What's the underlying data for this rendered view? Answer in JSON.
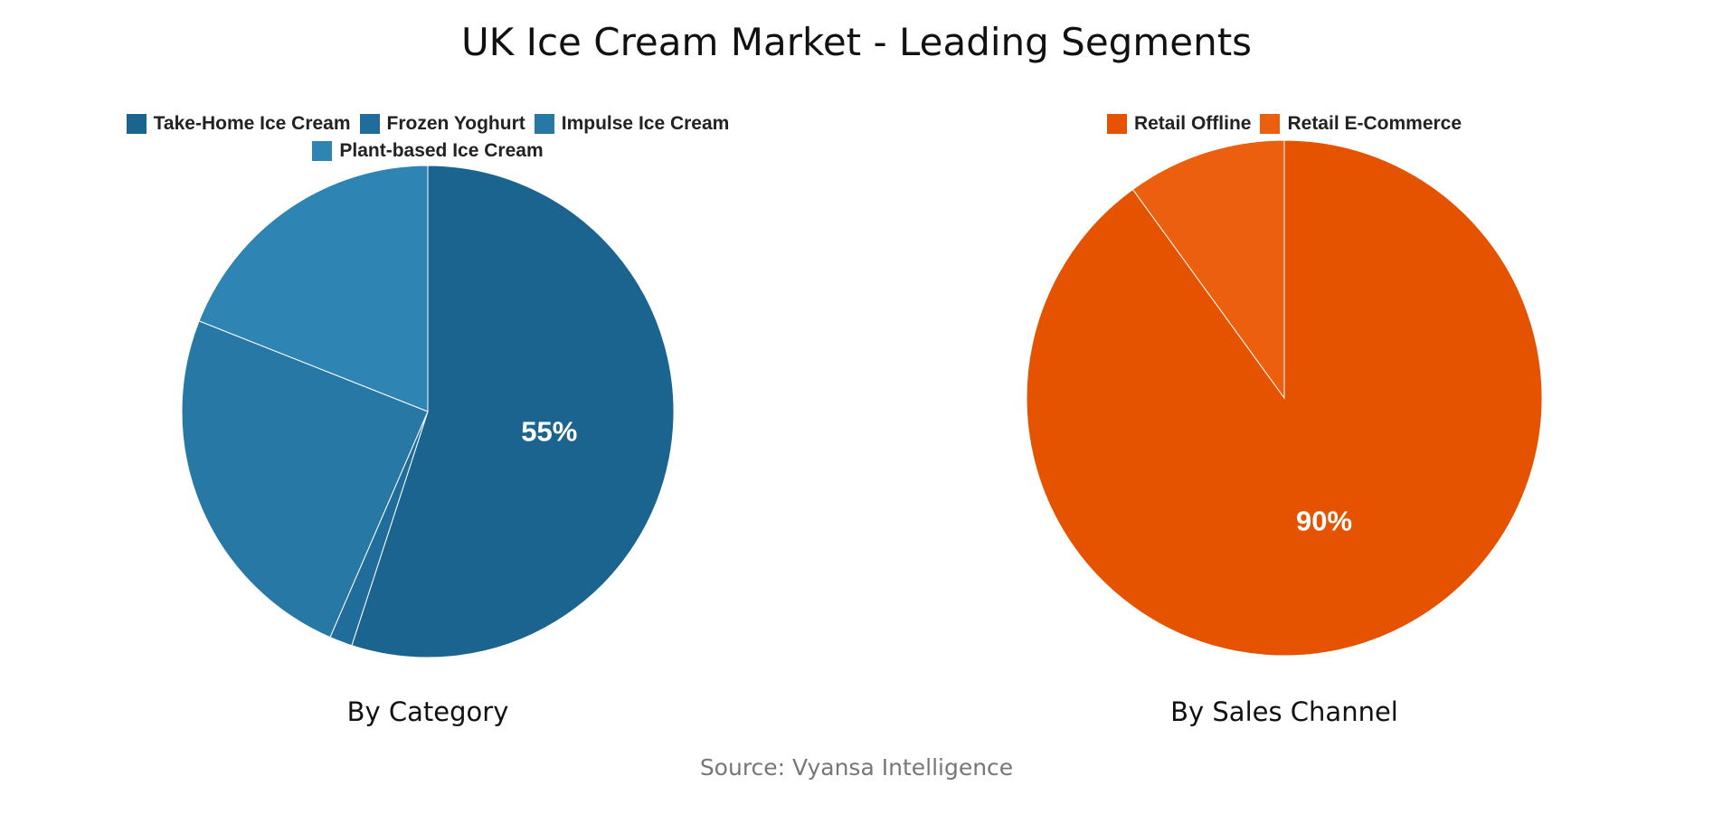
{
  "title": "UK Ice Cream Market - Leading Segments",
  "source": "Source: Vyansa Intelligence",
  "chart_data": [
    {
      "type": "pie",
      "subtitle": "By Category",
      "legend_position": "top",
      "categories": [
        "Take-Home Ice Cream",
        "Frozen Yoghurt",
        "Impulse Ice Cream",
        "Plant-based Ice Cream"
      ],
      "values": [
        55,
        1.5,
        24.5,
        19
      ],
      "colors": [
        "#1c6490",
        "#206c9b",
        "#2878a6",
        "#2e84b2"
      ],
      "data_labels": [
        "55%",
        "",
        "",
        ""
      ]
    },
    {
      "type": "pie",
      "subtitle": "By Sales Channel",
      "legend_position": "top",
      "categories": [
        "Retail Offline",
        "Retail E-Commerce"
      ],
      "values": [
        90,
        10
      ],
      "colors": [
        "#e55300",
        "#ec5f0e"
      ],
      "data_labels": [
        "90%",
        ""
      ]
    }
  ]
}
